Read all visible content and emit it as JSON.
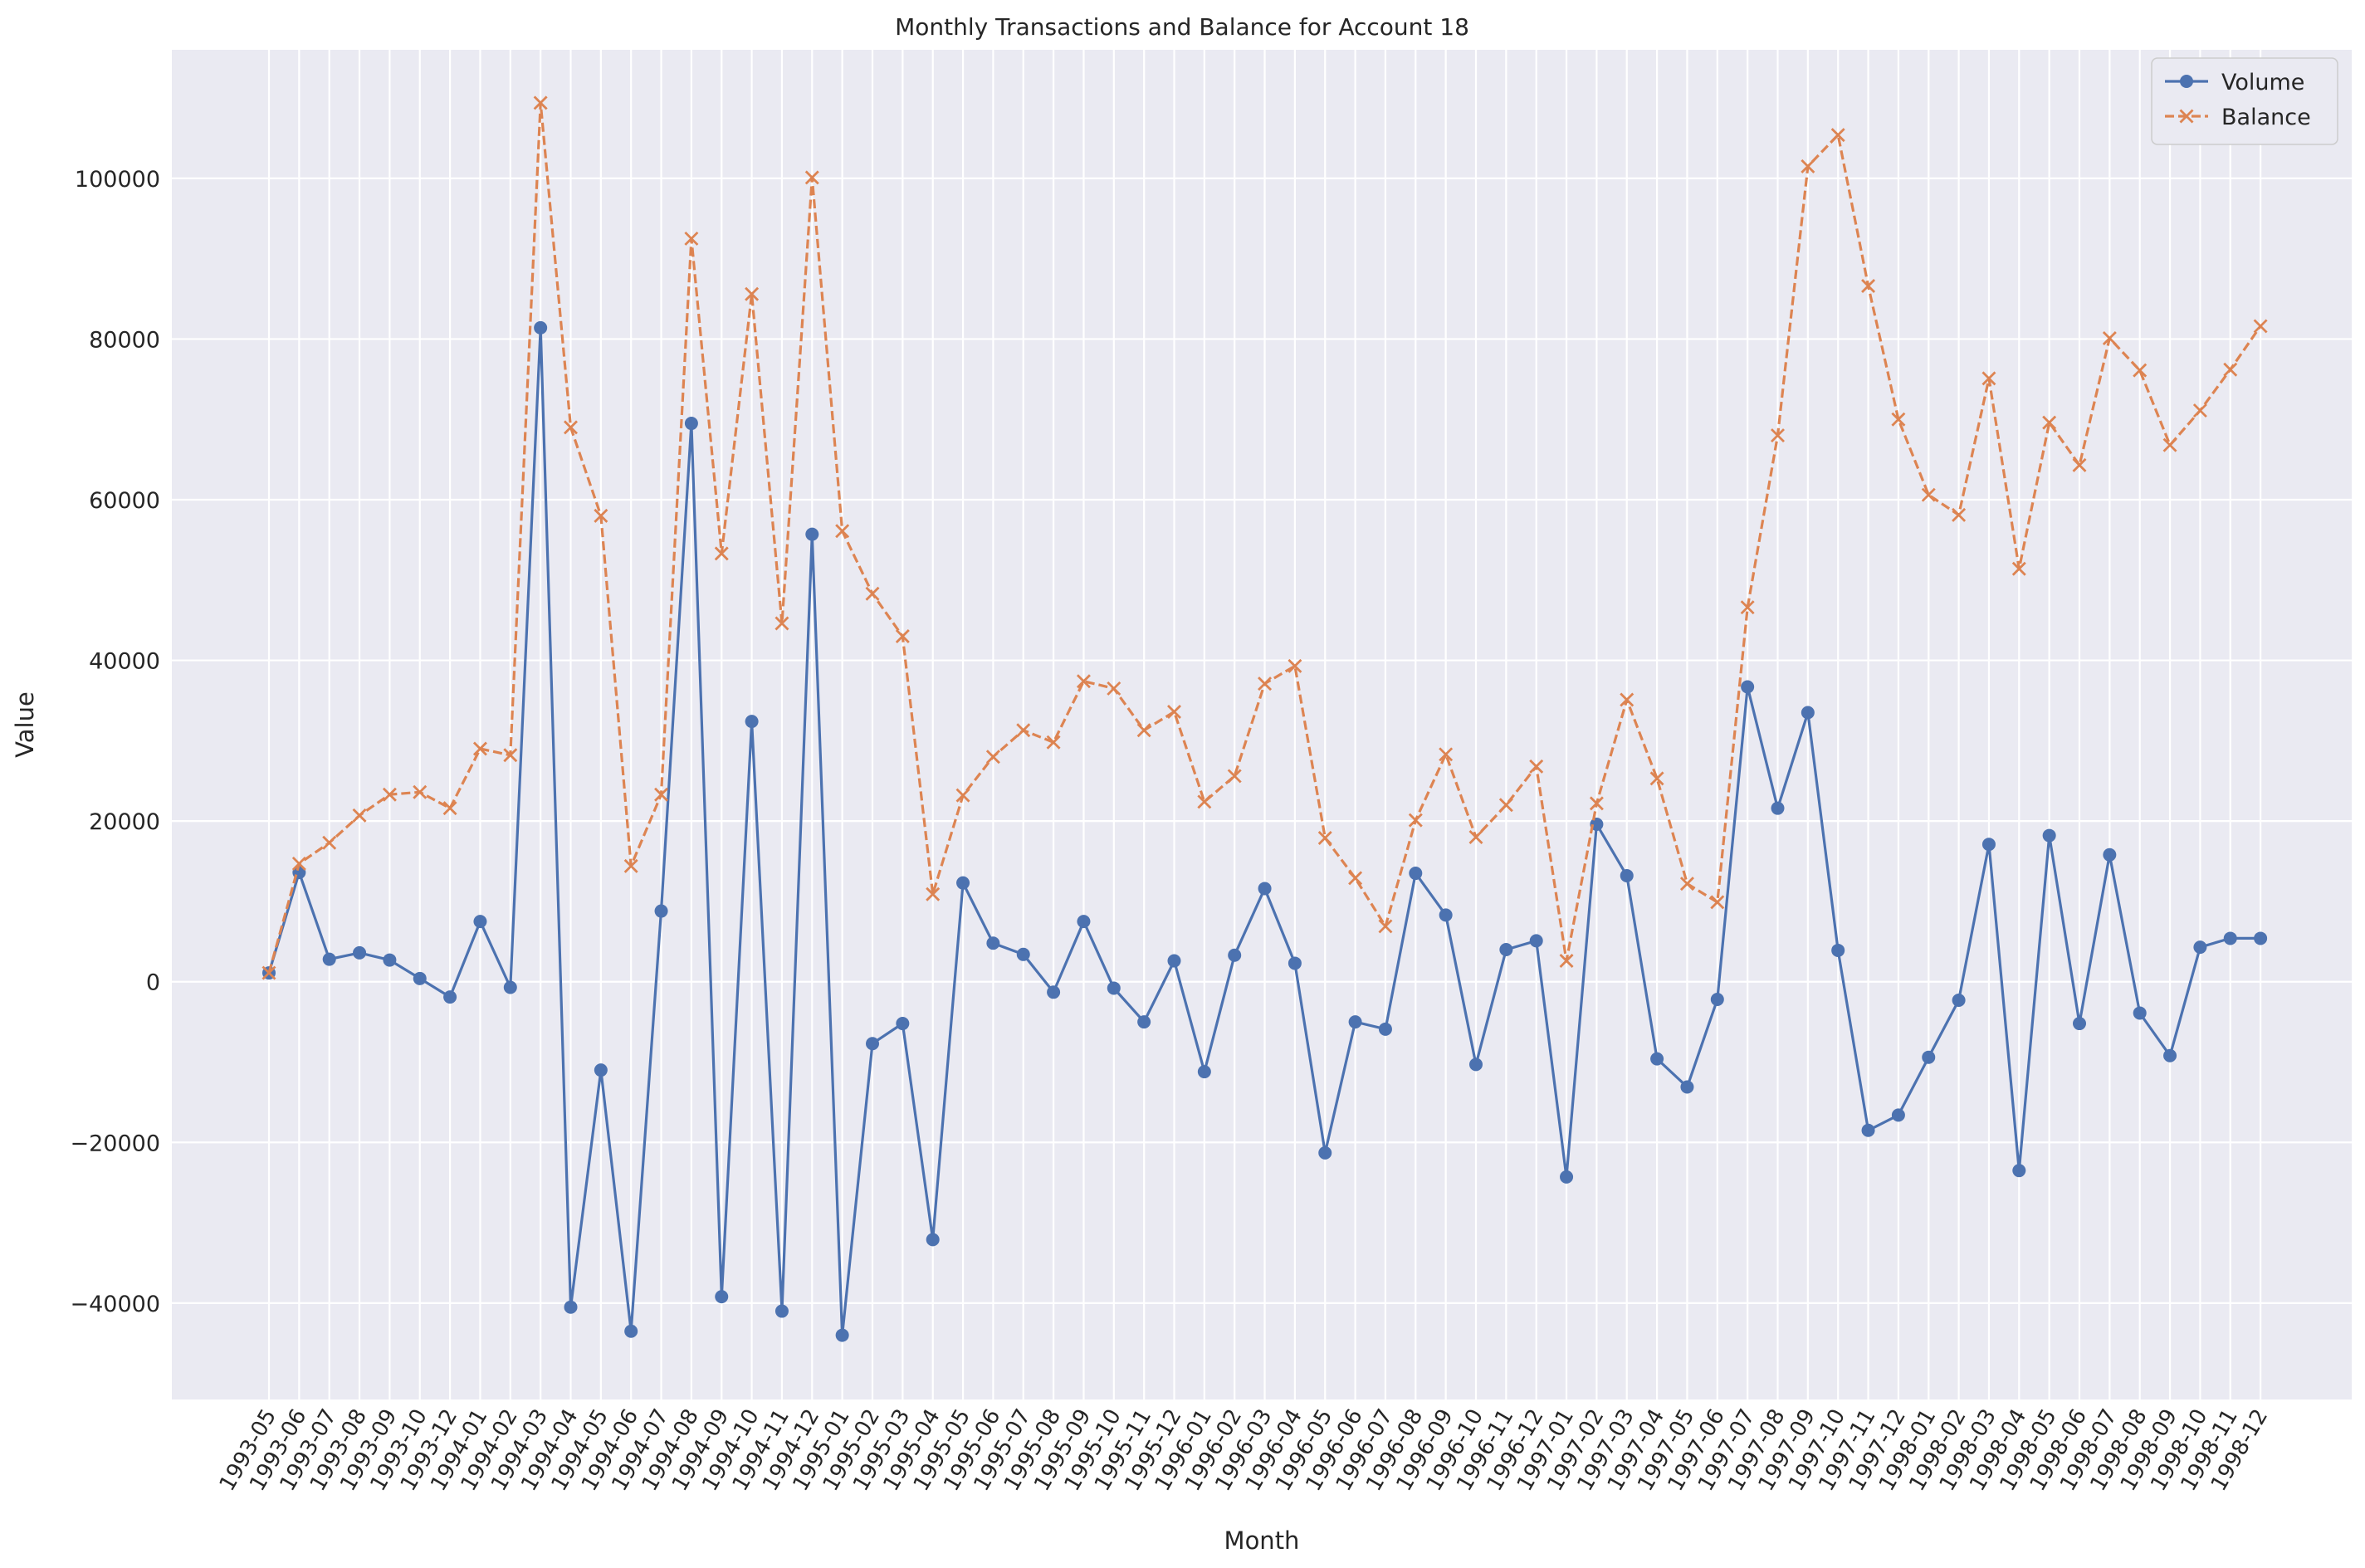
{
  "chart_data": {
    "type": "line",
    "title": "Monthly Transactions and Balance for Account 18",
    "xlabel": "Month",
    "ylabel": "Value",
    "ylim": [
      -52000,
      116000
    ],
    "yticks": [
      -40000,
      -20000,
      0,
      20000,
      40000,
      60000,
      80000,
      100000
    ],
    "ytick_labels": [
      "−40000",
      "−20000",
      "0",
      "20000",
      "40000",
      "60000",
      "80000",
      "100000"
    ],
    "grid": true,
    "legend_position": "top-right",
    "categories": [
      "1993-05",
      "1993-06",
      "1993-07",
      "1993-08",
      "1993-09",
      "1993-10",
      "1993-12",
      "1994-01",
      "1994-02",
      "1994-03",
      "1994-04",
      "1994-05",
      "1994-06",
      "1994-07",
      "1994-08",
      "1994-09",
      "1994-10",
      "1994-11",
      "1994-12",
      "1995-01",
      "1995-02",
      "1995-03",
      "1995-04",
      "1995-05",
      "1995-06",
      "1995-07",
      "1995-08",
      "1995-09",
      "1995-10",
      "1995-11",
      "1995-12",
      "1996-01",
      "1996-02",
      "1996-03",
      "1996-04",
      "1996-05",
      "1996-06",
      "1996-07",
      "1996-08",
      "1996-09",
      "1996-10",
      "1996-11",
      "1996-12",
      "1997-01",
      "1997-02",
      "1997-03",
      "1997-04",
      "1997-05",
      "1997-06",
      "1997-07",
      "1997-08",
      "1997-09",
      "1997-10",
      "1997-11",
      "1997-12",
      "1998-01",
      "1998-02",
      "1998-03",
      "1998-04",
      "1998-05",
      "1998-06",
      "1998-07",
      "1998-08",
      "1998-09",
      "1998-10",
      "1998-11",
      "1998-12"
    ],
    "series": [
      {
        "name": "Volume",
        "color": "#4c72b0",
        "line_style": "solid",
        "marker": "circle",
        "values": [
          1100,
          13600,
          2800,
          3600,
          2700,
          400,
          -1900,
          7500,
          -700,
          81400,
          -40500,
          -11000,
          -43500,
          8800,
          69500,
          -39200,
          32400,
          -41000,
          55700,
          -44000,
          -7700,
          -5200,
          -32100,
          12300,
          4800,
          3400,
          -1300,
          7500,
          -800,
          -5000,
          2600,
          -11200,
          3300,
          11600,
          2300,
          -21300,
          -5000,
          -5900,
          13500,
          8300,
          -10300,
          4000,
          5100,
          -24300,
          19600,
          13200,
          -9600,
          -13100,
          -2200,
          36700,
          21600,
          33500,
          3900,
          -18500,
          -16600,
          -9400,
          -2300,
          17100,
          -23500,
          18200,
          -5200,
          15800,
          -3900,
          -9200,
          4300,
          5400,
          5400
        ]
      },
      {
        "name": "Balance",
        "color": "#dd8452",
        "line_style": "dashed",
        "marker": "x",
        "values": [
          1100,
          14700,
          17300,
          20700,
          23300,
          23600,
          21600,
          29000,
          28200,
          109400,
          69000,
          58000,
          14400,
          23300,
          92500,
          53300,
          85600,
          44600,
          100100,
          56100,
          48300,
          43000,
          10900,
          23200,
          28000,
          31300,
          29800,
          37400,
          36500,
          31300,
          33600,
          22400,
          25600,
          37100,
          39300,
          17900,
          12900,
          6900,
          20100,
          28300,
          18000,
          22000,
          26800,
          2600,
          22200,
          35100,
          25300,
          12200,
          9900,
          46600,
          68000,
          101500,
          105400,
          86600,
          70000,
          60600,
          58100,
          75100,
          51400,
          69600,
          64300,
          80100,
          76100,
          66800,
          71100,
          76200,
          81600
        ]
      }
    ]
  }
}
